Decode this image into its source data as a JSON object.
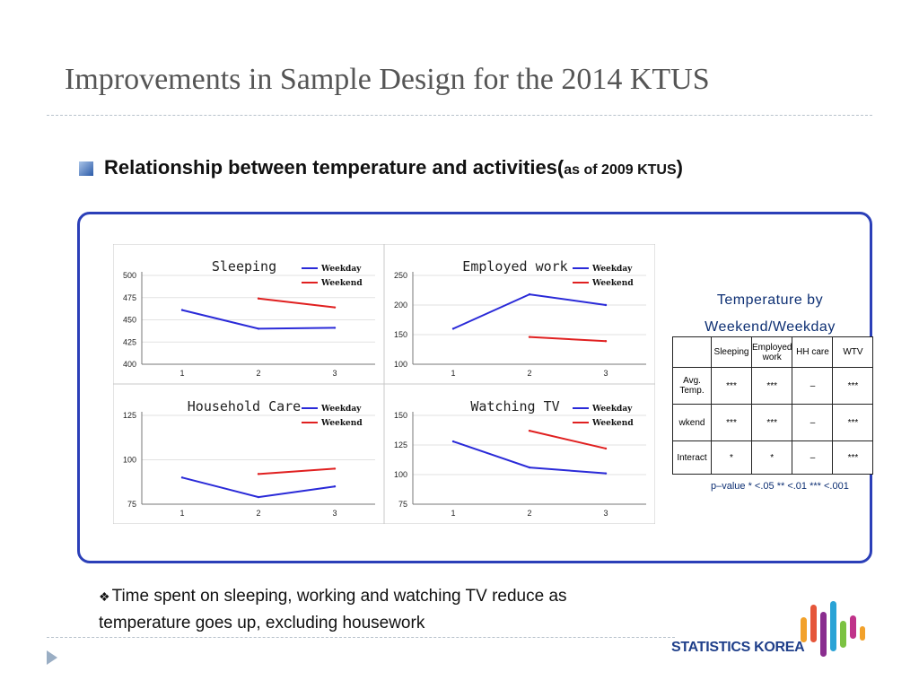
{
  "slide": {
    "title": "Improvements in Sample Design for the 2014 KTUS",
    "subtitle_main": "Relationship between temperature and activities(",
    "subtitle_small": "as of 2009 KTUS",
    "subtitle_close": ")",
    "note_line1": "Time spent  on sleeping,  working and watching TV reduce as",
    "note_line2": "temperature goes up, excluding  housework",
    "logo_text": "STATISTICS KOREA"
  },
  "colors": {
    "weekday": "#2a2ad8",
    "weekend": "#e02020",
    "frame": "#2b3fb8",
    "table_text": "#0d2f73"
  },
  "chart_data": [
    {
      "type": "line",
      "title": "Sleeping",
      "categories": [
        "1",
        "2",
        "3"
      ],
      "yticks": [
        "400",
        "425",
        "450",
        "475",
        "500"
      ],
      "ylim": [
        400,
        500
      ],
      "series": [
        {
          "name": "Weekday",
          "values": [
            461,
            440,
            441
          ]
        },
        {
          "name": "Weekend",
          "values": [
            null,
            474,
            464
          ]
        }
      ]
    },
    {
      "type": "line",
      "title": "Employed work",
      "categories": [
        "1",
        "2",
        "3"
      ],
      "yticks": [
        "100",
        "150",
        "200",
        "250"
      ],
      "ylim": [
        100,
        250
      ],
      "series": [
        {
          "name": "Weekday",
          "values": [
            160,
            218,
            200
          ]
        },
        {
          "name": "Weekend",
          "values": [
            null,
            146,
            139
          ]
        }
      ]
    },
    {
      "type": "line",
      "title": "Household Care",
      "categories": [
        "1",
        "2",
        "3"
      ],
      "yticks": [
        "75",
        "100",
        "125"
      ],
      "ylim": [
        75,
        125
      ],
      "series": [
        {
          "name": "Weekday",
          "values": [
            90,
            79,
            85
          ]
        },
        {
          "name": "Weekend",
          "values": [
            null,
            92,
            95
          ]
        }
      ]
    },
    {
      "type": "line",
      "title": "Watching TV",
      "categories": [
        "1",
        "2",
        "3"
      ],
      "yticks": [
        "75",
        "100",
        "125",
        "150"
      ],
      "ylim": [
        75,
        150
      ],
      "series": [
        {
          "name": "Weekday",
          "values": [
            128,
            106,
            101
          ]
        },
        {
          "name": "Weekend",
          "values": [
            null,
            137,
            122
          ]
        }
      ]
    }
  ],
  "sig_table": {
    "title_line1": "Temperature by",
    "title_line2": "Weekend/Weekday",
    "headers": [
      "",
      "Sleeping",
      "Employed work",
      "HH care",
      "WTV"
    ],
    "rows": [
      [
        "Avg. Temp.",
        "***",
        "***",
        "–",
        "***"
      ],
      [
        "wkend",
        "***",
        "***",
        "–",
        "***"
      ],
      [
        "Interact",
        "*",
        "*",
        "–",
        "***"
      ]
    ],
    "pvalue_note": "p–value  * <.05  ** <.01  *** <.001"
  }
}
